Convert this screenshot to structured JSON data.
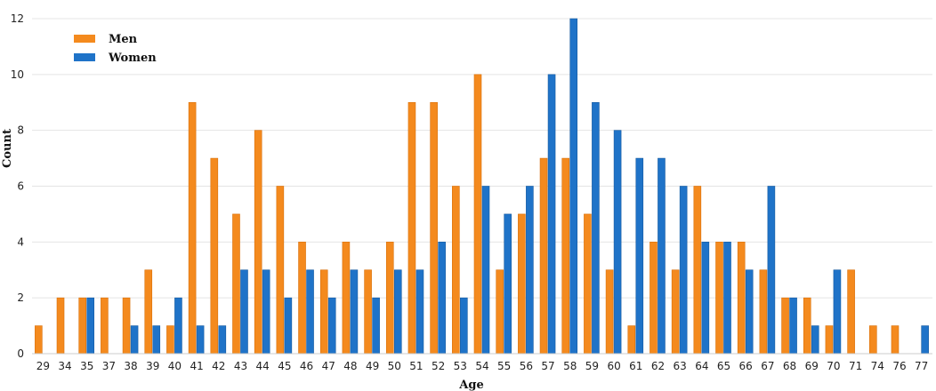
{
  "chart_data": {
    "type": "bar",
    "xlabel": "Age",
    "ylabel": "Count",
    "ylim": [
      0,
      12
    ],
    "yticks": [
      0,
      2,
      4,
      6,
      8,
      10,
      12
    ],
    "grid": "horizontal",
    "legend_position": "top-left",
    "categories": [
      "29",
      "34",
      "35",
      "37",
      "38",
      "39",
      "40",
      "41",
      "42",
      "43",
      "44",
      "45",
      "46",
      "47",
      "48",
      "49",
      "50",
      "51",
      "52",
      "53",
      "54",
      "55",
      "56",
      "57",
      "58",
      "59",
      "60",
      "61",
      "62",
      "63",
      "64",
      "65",
      "66",
      "67",
      "68",
      "69",
      "70",
      "71",
      "74",
      "76",
      "77"
    ],
    "series": [
      {
        "name": "Men",
        "color": "#f48a1e",
        "values": [
          1,
          2,
          2,
          2,
          2,
          3,
          1,
          9,
          7,
          5,
          8,
          6,
          4,
          3,
          4,
          3,
          4,
          9,
          9,
          6,
          10,
          3,
          5,
          7,
          7,
          5,
          3,
          1,
          4,
          3,
          6,
          4,
          4,
          3,
          2,
          2,
          1,
          3,
          1,
          1,
          0
        ]
      },
      {
        "name": "Women",
        "color": "#1f73c8",
        "values": [
          0,
          0,
          2,
          0,
          1,
          1,
          2,
          1,
          1,
          3,
          3,
          2,
          3,
          2,
          3,
          2,
          3,
          3,
          4,
          2,
          6,
          5,
          6,
          10,
          12,
          9,
          8,
          7,
          7,
          6,
          4,
          4,
          3,
          6,
          2,
          1,
          3,
          0,
          0,
          0,
          1
        ]
      }
    ]
  }
}
